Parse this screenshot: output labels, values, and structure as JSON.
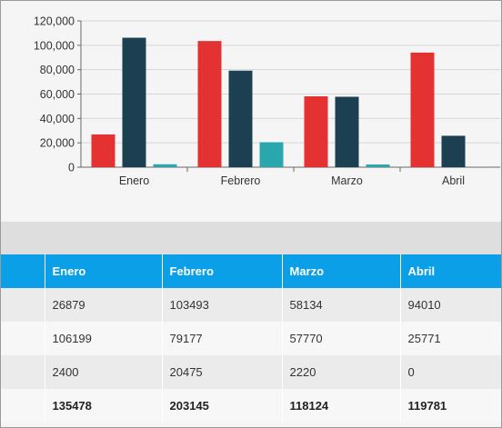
{
  "chart_data": {
    "type": "bar",
    "categories": [
      "Enero",
      "Febrero",
      "Marzo",
      "Abril"
    ],
    "series": [
      {
        "values": [
          26879,
          103493,
          58134,
          94010
        ],
        "color": "#e43132"
      },
      {
        "values": [
          106199,
          79177,
          57770,
          25771
        ],
        "color": "#1d3f52"
      },
      {
        "values": [
          2400,
          20475,
          2220,
          0
        ],
        "color": "#2aa6ad"
      }
    ],
    "ylim": [
      0,
      120000
    ],
    "yticks": [
      "0",
      "20,000",
      "40,000",
      "60,000",
      "80,000",
      "100,000",
      "120,000"
    ],
    "ytick_values": [
      0,
      20000,
      40000,
      60000,
      80000,
      100000,
      120000
    ],
    "grid": true
  },
  "table": {
    "headers": [
      "",
      "Enero",
      "Febrero",
      "Marzo",
      "Abril"
    ],
    "rows": [
      [
        "",
        "26879",
        "103493",
        "58134",
        "94010"
      ],
      [
        "",
        "106199",
        "79177",
        "57770",
        "25771"
      ],
      [
        "",
        "2400",
        "20475",
        "2220",
        "0"
      ],
      [
        "",
        "135478",
        "203145",
        "118124",
        "119781"
      ]
    ],
    "header_color": "#0b9fe8"
  }
}
